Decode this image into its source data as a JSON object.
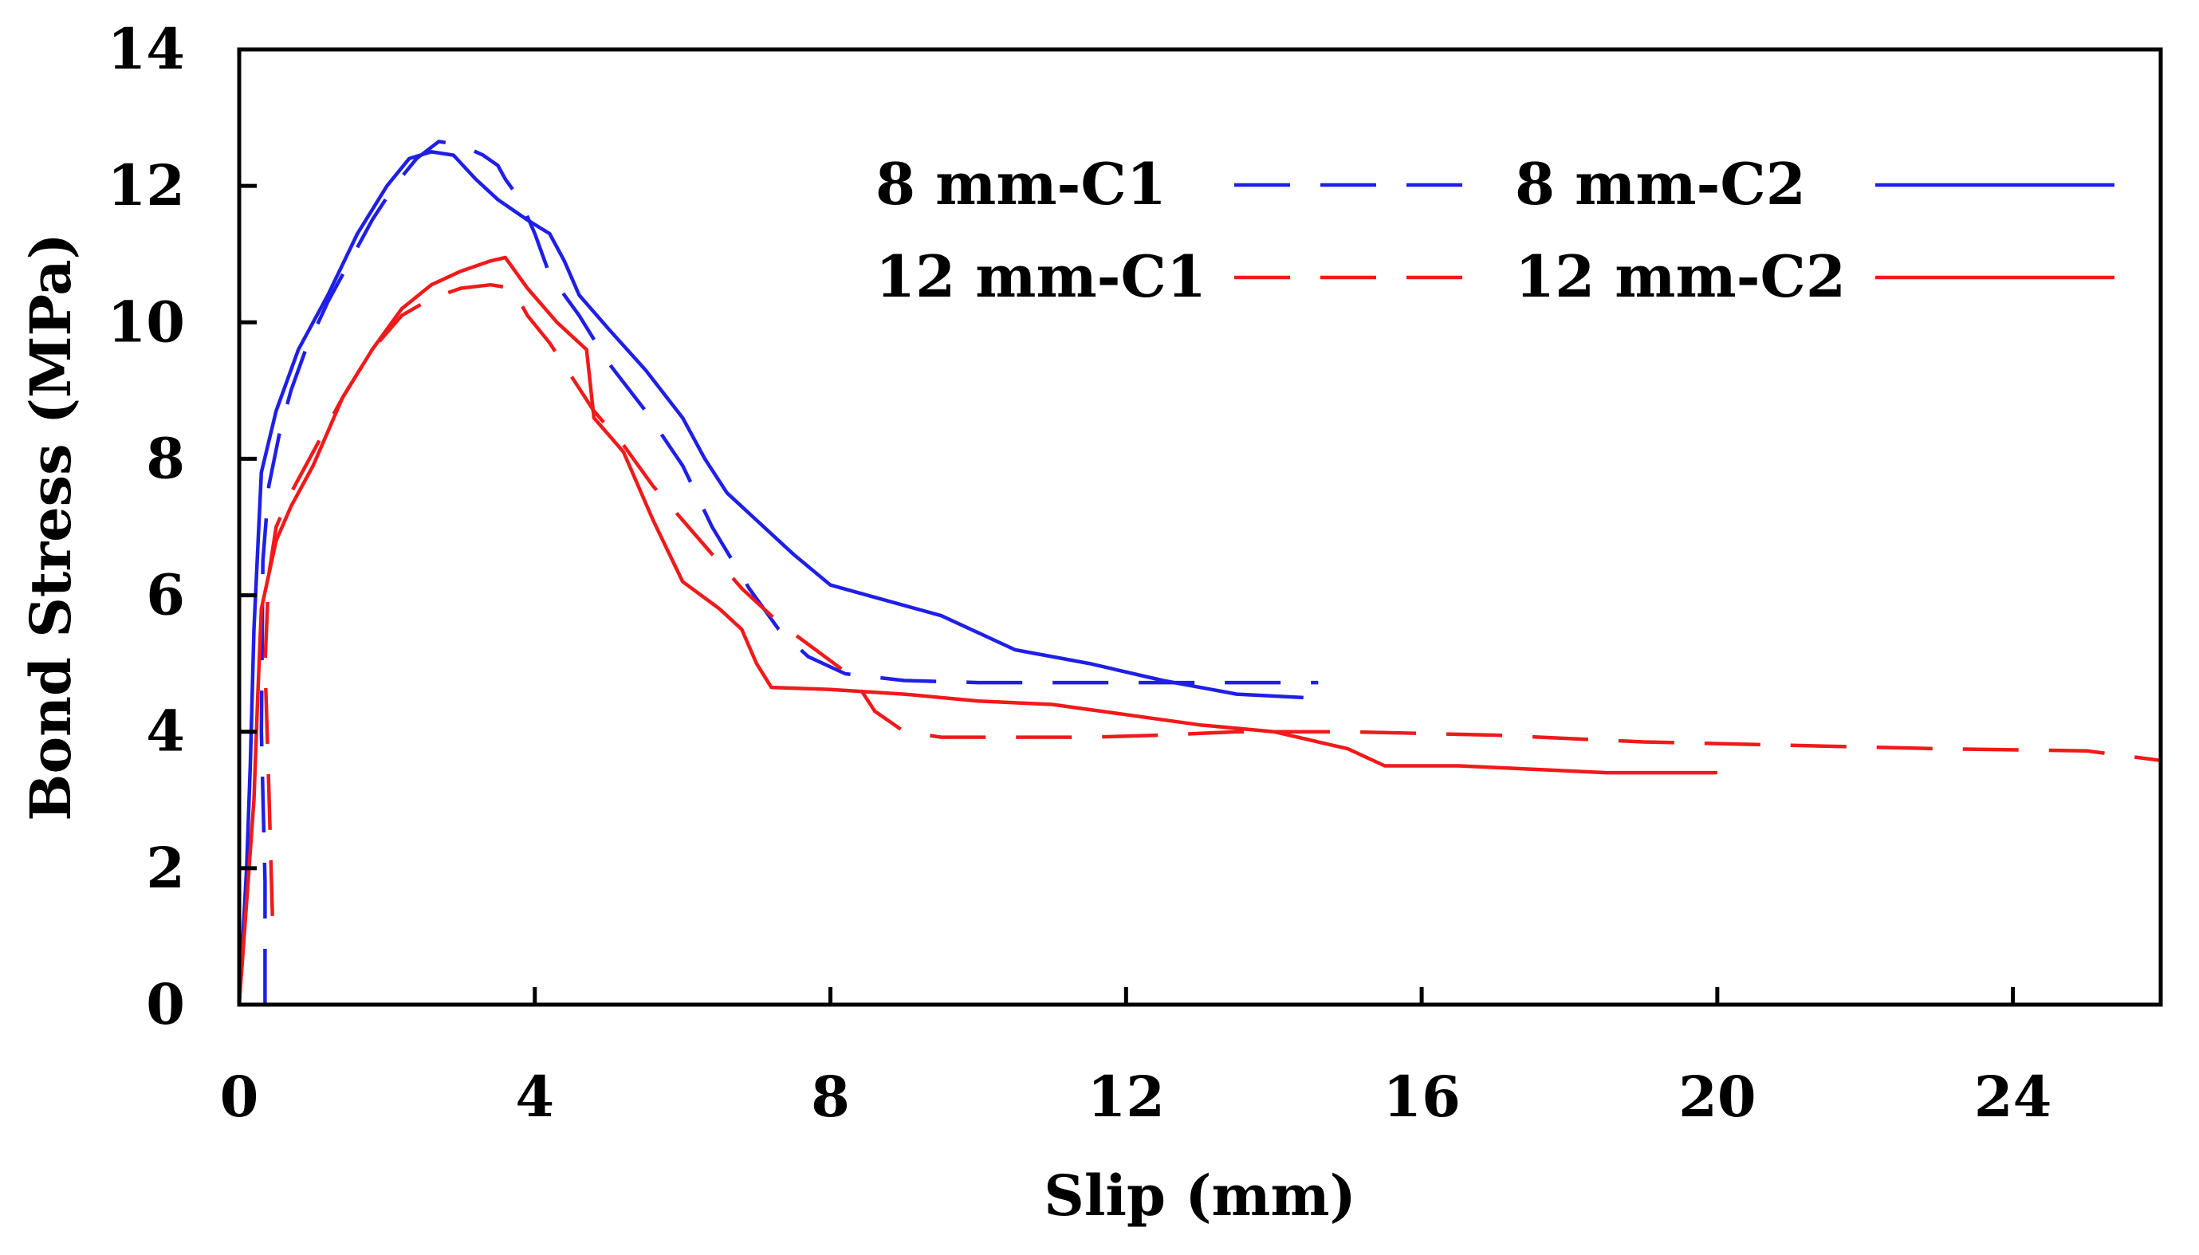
{
  "chart_data": {
    "type": "line",
    "title": "",
    "xlabel": "Slip (mm)",
    "ylabel": "Bond Stress (MPa)",
    "xlim": [
      0,
      26
    ],
    "ylim": [
      0,
      14
    ],
    "xticks": [
      0,
      4,
      8,
      12,
      16,
      20,
      24
    ],
    "yticks": [
      0,
      2,
      4,
      6,
      8,
      10,
      12,
      14
    ],
    "xtick_labels": [
      "0",
      "4",
      "8",
      "12",
      "16",
      "20",
      "24"
    ],
    "ytick_labels": [
      "0",
      "2",
      "4",
      "6",
      "8",
      "10",
      "12",
      "14"
    ],
    "grid": false,
    "legend_position": "top-right",
    "series": [
      {
        "name": "8 mm-C1",
        "color": "#1f1fe6",
        "style": "dashed",
        "x": [
          0.35,
          0.35,
          0.3,
          0.32,
          0.4,
          0.55,
          0.7,
          0.9,
          1.2,
          1.5,
          1.8,
          2.1,
          2.4,
          2.7,
          3.0,
          3.3,
          3.5,
          3.6,
          3.8,
          4.0,
          4.2,
          4.6,
          5.0,
          5.5,
          6.0,
          6.4,
          6.9,
          7.3,
          7.7,
          8.2,
          9.0,
          10.0,
          11.0,
          12.0,
          13.0,
          14.0,
          14.6
        ],
        "y": [
          0,
          1.8,
          4.0,
          6.5,
          7.6,
          8.4,
          9.0,
          9.6,
          10.3,
          10.9,
          11.5,
          12.0,
          12.4,
          12.65,
          12.6,
          12.45,
          12.3,
          12.1,
          11.8,
          11.3,
          10.7,
          10.1,
          9.4,
          8.7,
          7.9,
          7.0,
          6.1,
          5.5,
          5.1,
          4.85,
          4.75,
          4.72,
          4.72,
          4.72,
          4.72,
          4.72,
          4.72
        ]
      },
      {
        "name": "8 mm-C2",
        "color": "#1f1fe6",
        "style": "solid",
        "x": [
          0,
          0.1,
          0.15,
          0.2,
          0.3,
          0.5,
          0.8,
          1.2,
          1.6,
          2.0,
          2.3,
          2.6,
          2.9,
          3.2,
          3.5,
          3.9,
          4.2,
          4.4,
          4.6,
          5.0,
          5.5,
          6.0,
          6.3,
          6.6,
          7.0,
          7.5,
          8.0,
          8.5,
          9.5,
          10.5,
          11.5,
          12.5,
          13.5,
          14.4
        ],
        "y": [
          0,
          2.0,
          3.5,
          5.5,
          7.8,
          8.7,
          9.6,
          10.4,
          11.3,
          12.0,
          12.4,
          12.5,
          12.45,
          12.1,
          11.8,
          11.5,
          11.3,
          10.9,
          10.4,
          9.9,
          9.3,
          8.6,
          8.0,
          7.5,
          7.1,
          6.6,
          6.15,
          6.0,
          5.7,
          5.2,
          5.0,
          4.75,
          4.55,
          4.5
        ]
      },
      {
        "name": "12 mm-C1",
        "color": "#f01a1a",
        "style": "dashed",
        "x": [
          0.45,
          0.4,
          0.35,
          0.4,
          0.5,
          0.7,
          1.0,
          1.4,
          1.8,
          2.2,
          2.6,
          3.0,
          3.4,
          3.7,
          3.9,
          4.2,
          4.5,
          4.8,
          5.2,
          5.6,
          6.0,
          6.4,
          6.8,
          7.3,
          7.8,
          8.3,
          8.6,
          9.0,
          9.5,
          10.5,
          11.5,
          12.5,
          13.5,
          15,
          17,
          19,
          21,
          23,
          25,
          26.2
        ],
        "y": [
          1.3,
          3.2,
          5.0,
          6.3,
          7.0,
          7.5,
          8.1,
          8.9,
          9.6,
          10.1,
          10.35,
          10.5,
          10.55,
          10.5,
          10.1,
          9.7,
          9.2,
          8.7,
          8.2,
          7.6,
          7.1,
          6.6,
          6.1,
          5.6,
          5.2,
          4.8,
          4.3,
          4.0,
          3.92,
          3.92,
          3.92,
          3.95,
          4.0,
          4.0,
          3.95,
          3.85,
          3.8,
          3.75,
          3.72,
          3.55
        ]
      },
      {
        "name": "12 mm-C2",
        "color": "#f01a1a",
        "style": "solid",
        "x": [
          0,
          0.1,
          0.2,
          0.25,
          0.3,
          0.5,
          0.7,
          1.0,
          1.4,
          1.8,
          2.2,
          2.6,
          3.0,
          3.4,
          3.6,
          3.9,
          4.3,
          4.7,
          4.8,
          5.2,
          5.6,
          6.0,
          6.5,
          6.8,
          7.0,
          7.2,
          8.0,
          9.0,
          10,
          11,
          12,
          13,
          14,
          15,
          15.5,
          16.5,
          17.5,
          18.5,
          19.5,
          20
        ],
        "y": [
          0,
          1.5,
          3.0,
          4.5,
          5.8,
          6.8,
          7.3,
          7.9,
          8.9,
          9.6,
          10.2,
          10.55,
          10.75,
          10.9,
          10.95,
          10.5,
          10.0,
          9.6,
          8.6,
          8.1,
          7.1,
          6.2,
          5.8,
          5.5,
          5.0,
          4.65,
          4.62,
          4.55,
          4.45,
          4.4,
          4.25,
          4.1,
          4.0,
          3.75,
          3.5,
          3.5,
          3.45,
          3.4,
          3.4,
          3.4
        ]
      }
    ]
  }
}
